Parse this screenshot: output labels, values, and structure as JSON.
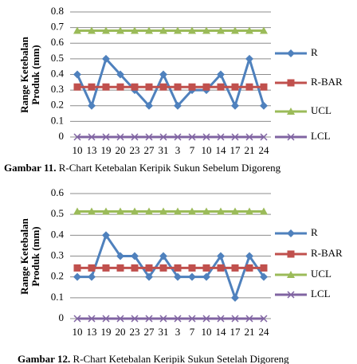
{
  "chart_data": [
    {
      "type": "line",
      "ylabel": "Range Ketebalan Produk (mm)",
      "categories": [
        "10",
        "13",
        "19",
        "20",
        "23",
        "27",
        "31",
        "3",
        "7",
        "10",
        "14",
        "17",
        "21",
        "24"
      ],
      "ylim": [
        0,
        0.8
      ],
      "yticks": [
        0,
        0.1,
        0.2,
        0.3,
        0.4,
        0.5,
        0.6,
        0.7,
        0.8
      ],
      "grid": true,
      "series": [
        {
          "name": "R",
          "color": "#4f81bd",
          "marker": "diamond",
          "values": [
            0.4,
            0.2,
            0.5,
            0.4,
            0.3,
            0.2,
            0.4,
            0.2,
            0.3,
            0.3,
            0.4,
            0.2,
            0.5,
            0.2
          ]
        },
        {
          "name": "R-BAR",
          "color": "#c0504d",
          "marker": "square",
          "values": [
            0.32,
            0.32,
            0.32,
            0.32,
            0.32,
            0.32,
            0.32,
            0.32,
            0.32,
            0.32,
            0.32,
            0.32,
            0.32,
            0.32
          ]
        },
        {
          "name": "UCL",
          "color": "#9bbb59",
          "marker": "triangle",
          "values": [
            0.68,
            0.68,
            0.68,
            0.68,
            0.68,
            0.68,
            0.68,
            0.68,
            0.68,
            0.68,
            0.68,
            0.68,
            0.68,
            0.68
          ]
        },
        {
          "name": "LCL",
          "color": "#8064a2",
          "marker": "x",
          "values": [
            0,
            0,
            0,
            0,
            0,
            0,
            0,
            0,
            0,
            0,
            0,
            0,
            0,
            0
          ]
        }
      ],
      "caption": {
        "label": "Gambar 11.",
        "text": "R-Chart Ketebalan Keripik Sukun Sebelum Digoreng"
      }
    },
    {
      "type": "line",
      "ylabel": "Range Ketebalan Produk (mm)",
      "categories": [
        "10",
        "13",
        "19",
        "20",
        "23",
        "27",
        "31",
        "3",
        "7",
        "10",
        "14",
        "17",
        "21",
        "24"
      ],
      "ylim": [
        0,
        0.6
      ],
      "yticks": [
        0,
        0.1,
        0.2,
        0.3,
        0.4,
        0.5,
        0.6
      ],
      "grid": true,
      "series": [
        {
          "name": "R",
          "color": "#4f81bd",
          "marker": "diamond",
          "values": [
            0.2,
            0.2,
            0.4,
            0.3,
            0.3,
            0.2,
            0.3,
            0.2,
            0.2,
            0.2,
            0.3,
            0.1,
            0.3,
            0.2
          ]
        },
        {
          "name": "R-BAR",
          "color": "#c0504d",
          "marker": "square",
          "values": [
            0.243,
            0.243,
            0.243,
            0.243,
            0.243,
            0.243,
            0.243,
            0.243,
            0.243,
            0.243,
            0.243,
            0.243,
            0.243,
            0.243
          ]
        },
        {
          "name": "UCL",
          "color": "#9bbb59",
          "marker": "triangle",
          "values": [
            0.514,
            0.514,
            0.514,
            0.514,
            0.514,
            0.514,
            0.514,
            0.514,
            0.514,
            0.514,
            0.514,
            0.514,
            0.514,
            0.514
          ]
        },
        {
          "name": "LCL",
          "color": "#8064a2",
          "marker": "x",
          "values": [
            0,
            0,
            0,
            0,
            0,
            0,
            0,
            0,
            0,
            0,
            0,
            0,
            0,
            0
          ]
        }
      ],
      "caption": {
        "label": "Gambar 12.",
        "text": "R-Chart Ketebalan Keripik Sukun Setelah Digoreng"
      }
    }
  ]
}
